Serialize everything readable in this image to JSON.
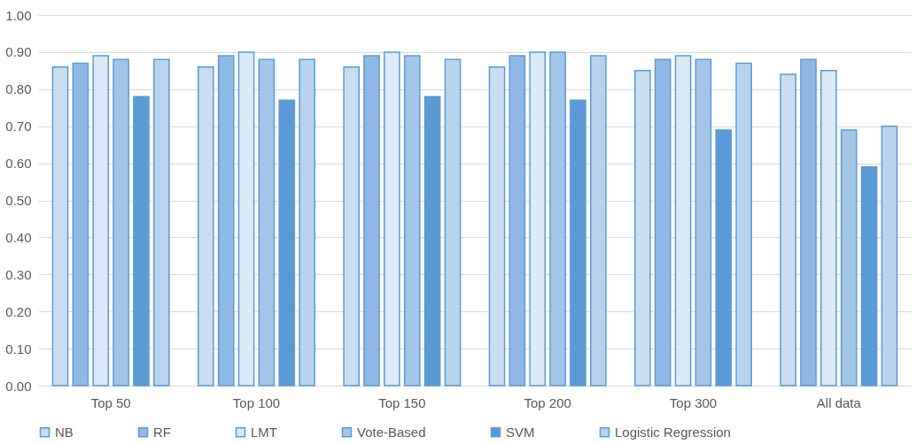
{
  "chart_data": {
    "type": "bar",
    "categories": [
      "Top 50",
      "Top 100",
      "Top 150",
      "Top 200",
      "Top 300",
      "All data"
    ],
    "series": [
      {
        "name": "NB",
        "color": "#c9ddf1",
        "values": [
          0.86,
          0.86,
          0.86,
          0.86,
          0.85,
          0.84
        ]
      },
      {
        "name": "RF",
        "color": "#8fb9e4",
        "values": [
          0.87,
          0.89,
          0.89,
          0.89,
          0.88,
          0.88
        ]
      },
      {
        "name": "LMT",
        "color": "#dce9f6",
        "values": [
          0.89,
          0.9,
          0.9,
          0.9,
          0.89,
          0.85
        ]
      },
      {
        "name": "Vote-Based",
        "color": "#a3c6e9",
        "values": [
          0.88,
          0.88,
          0.89,
          0.9,
          0.88,
          0.69
        ]
      },
      {
        "name": "SVM",
        "color": "#5b9bd5",
        "values": [
          0.78,
          0.77,
          0.78,
          0.77,
          0.69,
          0.59
        ]
      },
      {
        "name": "Logistic Regression",
        "color": "#b8d3ee",
        "values": [
          0.88,
          0.88,
          0.88,
          0.89,
          0.87,
          0.7
        ]
      }
    ],
    "ylim": [
      0,
      1
    ],
    "yticks": [
      {
        "value": 0,
        "label": "0.00"
      },
      {
        "value": 0.1,
        "label": "0.10"
      },
      {
        "value": 0.2,
        "label": "0.20"
      },
      {
        "value": 0.3,
        "label": "0.30"
      },
      {
        "value": 0.4,
        "label": "0.40"
      },
      {
        "value": 0.5,
        "label": "0.50"
      },
      {
        "value": 0.6,
        "label": "0.60"
      },
      {
        "value": 0.7,
        "label": "0.70"
      },
      {
        "value": 0.8,
        "label": "0.80"
      },
      {
        "value": 0.9,
        "label": "0.90"
      },
      {
        "value": 1,
        "label": "1.00"
      }
    ],
    "grid": "y",
    "legend": "bottom"
  }
}
